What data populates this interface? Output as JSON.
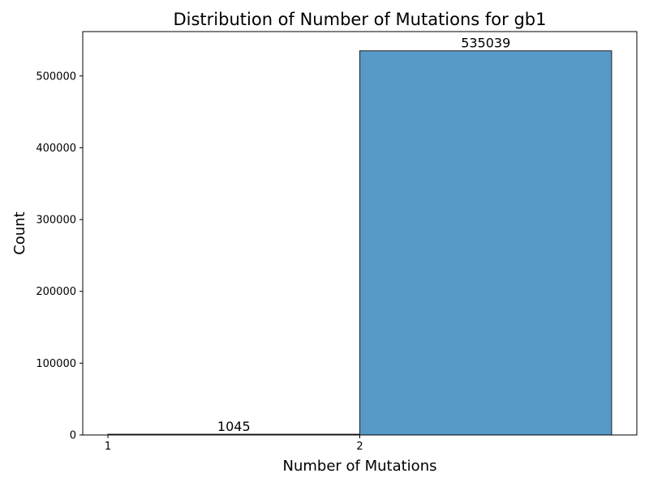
{
  "chart_data": {
    "type": "bar",
    "title": "Distribution of Number of Mutations for gb1",
    "xlabel": "Number of Mutations",
    "ylabel": "Count",
    "bars": [
      {
        "x_start": 1,
        "x_end": 2,
        "value": 1045,
        "label": "1045"
      },
      {
        "x_start": 2,
        "x_end": 3,
        "value": 535039,
        "label": "535039"
      }
    ],
    "xticks": [
      {
        "value": 1,
        "label": "1"
      },
      {
        "value": 2,
        "label": "2"
      }
    ],
    "yticks": [
      {
        "value": 0,
        "label": "0"
      },
      {
        "value": 100000,
        "label": "100000"
      },
      {
        "value": 200000,
        "label": "200000"
      },
      {
        "value": 300000,
        "label": "300000"
      },
      {
        "value": 400000,
        "label": "400000"
      },
      {
        "value": 500000,
        "label": "500000"
      }
    ],
    "xlim": [
      0.9,
      3.1
    ],
    "ylim": [
      0,
      561791
    ],
    "grid": false,
    "legend": "none",
    "bar_color": "#5799c7",
    "bar_edge_color": "#222222"
  }
}
